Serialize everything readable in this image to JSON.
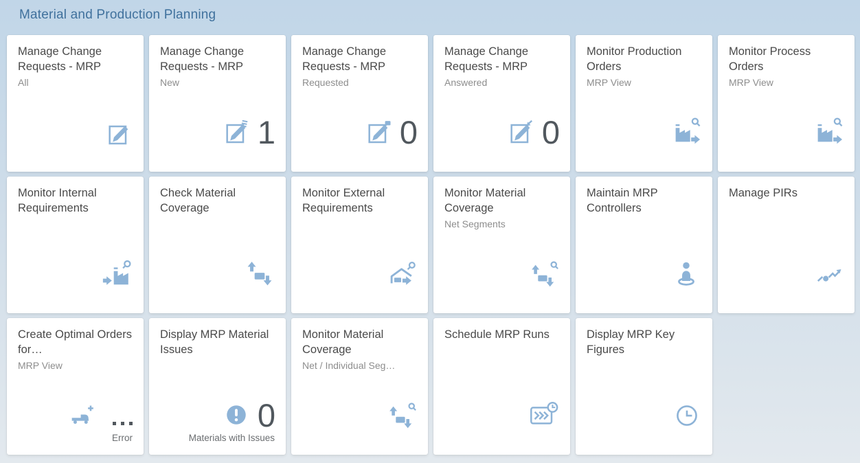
{
  "page": {
    "title": "Material and Production Planning"
  },
  "colors": {
    "icon_accent": "#8db3d7",
    "kpi_number": "#51585e",
    "header_title": "#40719d",
    "tile_title": "#4a4a4a",
    "tile_subtitle": "#8d8d8d",
    "tile_footer": "#6a6d70",
    "tile_background": "#ffffff",
    "page_background_top": "#c1d6e8",
    "page_background_bottom": "#e3e9ee"
  },
  "tiles": [
    {
      "title": "Manage Change Requests - MRP",
      "subtitle": "All",
      "icon": "edit",
      "count": "",
      "footer": "",
      "dots": false
    },
    {
      "title": "Manage Change Requests - MRP",
      "subtitle": "New",
      "icon": "edit-new",
      "count": "1",
      "footer": "",
      "dots": false
    },
    {
      "title": "Manage Change Requests - MRP",
      "subtitle": "Requested",
      "icon": "edit-requested",
      "count": "0",
      "footer": "",
      "dots": false
    },
    {
      "title": "Manage Change Requests - MRP",
      "subtitle": "Answered",
      "icon": "edit-answered",
      "count": "0",
      "footer": "",
      "dots": false
    },
    {
      "title": "Monitor Production Orders",
      "subtitle": "MRP View",
      "icon": "factory-search",
      "count": "",
      "footer": "",
      "dots": false
    },
    {
      "title": "Monitor Process Orders",
      "subtitle": "MRP View",
      "icon": "factory-search",
      "count": "",
      "footer": "",
      "dots": false
    },
    {
      "title": "Monitor Internal Requirements",
      "subtitle": "",
      "icon": "inbound-factory-search",
      "count": "",
      "footer": "",
      "dots": false
    },
    {
      "title": "Check Material Coverage",
      "subtitle": "",
      "icon": "material-flow",
      "count": "",
      "footer": "",
      "dots": false
    },
    {
      "title": "Monitor External Requirements",
      "subtitle": "",
      "icon": "outbound-house-search",
      "count": "",
      "footer": "",
      "dots": false
    },
    {
      "title": "Monitor Material Coverage",
      "subtitle": "Net Segments",
      "icon": "material-flow-search",
      "count": "",
      "footer": "",
      "dots": false
    },
    {
      "title": "Maintain MRP Controllers",
      "subtitle": "",
      "icon": "person",
      "count": "",
      "footer": "",
      "dots": false
    },
    {
      "title": "Manage PIRs",
      "subtitle": "",
      "icon": "trend",
      "count": "",
      "footer": "",
      "dots": false
    },
    {
      "title": "Create Optimal Orders for…",
      "subtitle": "MRP View",
      "icon": "truck-add",
      "count": "",
      "footer": "Error",
      "dots": true
    },
    {
      "title": "Display MRP Material Issues",
      "subtitle": "",
      "icon": "alert",
      "count": "0",
      "footer": "Materials with Issues",
      "dots": false
    },
    {
      "title": "Monitor Material Coverage",
      "subtitle": "Net / Individual Seg…",
      "icon": "material-flow-search",
      "count": "",
      "footer": "",
      "dots": false
    },
    {
      "title": "Schedule MRP Runs",
      "subtitle": "",
      "icon": "mrp-run",
      "count": "",
      "footer": "",
      "dots": false
    },
    {
      "title": "Display MRP Key Figures",
      "subtitle": "",
      "icon": "clock",
      "count": "",
      "footer": "",
      "dots": false
    }
  ]
}
